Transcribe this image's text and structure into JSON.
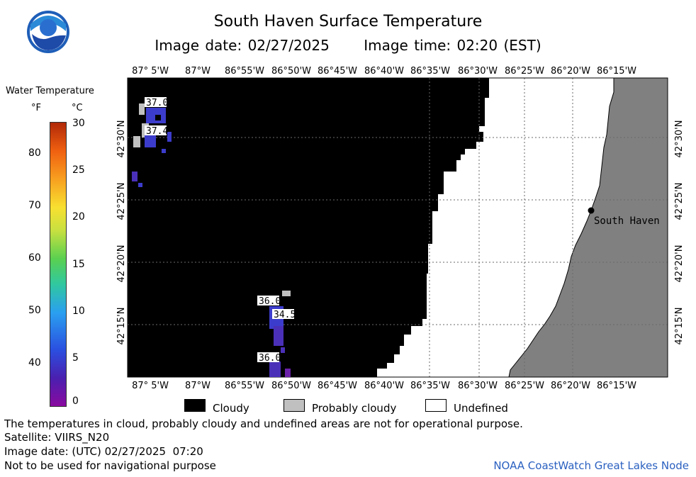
{
  "title": "South Haven Surface Temperature",
  "subtitle": {
    "date_label": "Image date:",
    "date": "02/27/2025",
    "time_label": "Image time:",
    "time": "02:20 (EST)"
  },
  "legend": {
    "title": "Water Temperature",
    "unit_f": "°F",
    "unit_c": "°C",
    "ticks_f": [
      "80",
      "70",
      "60",
      "50",
      "40"
    ],
    "ticks_c": [
      "30",
      "25",
      "20",
      "15",
      "10",
      "5",
      "0"
    ],
    "colors": {
      "cloudy": "#000000",
      "probably_cloudy": "#c0c0c0",
      "undefined": "#ffffff",
      "land": "#808080"
    }
  },
  "map": {
    "lon_top": [
      "87° 5'W",
      "87°W",
      "86°55'W",
      "86°50'W",
      "86°45'W",
      "86°40'W",
      "86°35'W",
      "86°30'W",
      "86°25'W",
      "86°20'W",
      "86°15'W"
    ],
    "lon_bottom": [
      "87° 5'W",
      "87°W",
      "86°55'W",
      "86°50'W",
      "86°45'W",
      "86°40'W",
      "86°35'W",
      "86°30'W",
      "86°25'W",
      "86°20'W",
      "86°15'W"
    ],
    "lat_labels": [
      "42°30'N",
      "42°25'N",
      "42°20'N",
      "42°15'N"
    ],
    "city": "South Haven",
    "temps": [
      "37.0",
      "37.4",
      "36.0",
      "34.5",
      "36.0"
    ]
  },
  "key": {
    "cloudy": "Cloudy",
    "probably_cloudy": "Probably cloudy",
    "undefined": "Undefined"
  },
  "footer": {
    "disclaimer": "The temperatures in cloud, probably cloudy and undefined areas are not for operational purpose.",
    "satellite": "Satellite: VIIRS_N20",
    "utc_date": "Image date: (UTC) 02/27/2025  07:20",
    "navigation": "Not to be used for navigational purpose",
    "credit": "NOAA CoastWatch Great Lakes Node"
  }
}
